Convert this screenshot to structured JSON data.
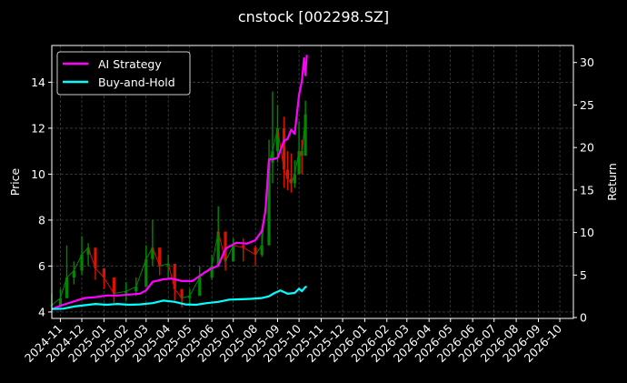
{
  "chart_data": {
    "type": "line",
    "title": "cnstock [002298.SZ]",
    "ylabel_left": "Price",
    "ylabel_right": "Return",
    "ylim_left": [
      3.72,
      15.6
    ],
    "ylim_right": [
      -0.1,
      32
    ],
    "yticks_left": [
      "4",
      "6",
      "8",
      "10",
      "12",
      "14"
    ],
    "yticks_right": [
      "0",
      "5",
      "10",
      "15",
      "20",
      "25",
      "30"
    ],
    "xticks": [
      "2024-11",
      "2024-12",
      "2025-01",
      "2025-02",
      "2025-03",
      "2025-04",
      "2025-05",
      "2025-06",
      "2025-07",
      "2025-08",
      "2025-09",
      "2025-10",
      "2025-11",
      "2025-12",
      "2026-01",
      "2026-02",
      "2026-03",
      "2026-04",
      "2026-05",
      "2026-06",
      "2026-07",
      "2026-08",
      "2026-09",
      "2026-10"
    ],
    "xlim": [
      "2024-10-20",
      "2026-10-20"
    ],
    "grid": true,
    "legend_position": "top-left",
    "series": [
      {
        "name": "AI Strategy",
        "axis": "right",
        "color": "#ff00ff",
        "x": [
          "2024-10-20",
          "2024-11-05",
          "2024-11-20",
          "2024-12-05",
          "2024-12-20",
          "2025-01-05",
          "2025-01-20",
          "2025-02-05",
          "2025-02-20",
          "2025-03-01",
          "2025-03-10",
          "2025-03-25",
          "2025-04-05",
          "2025-04-20",
          "2025-05-05",
          "2025-05-20",
          "2025-06-01",
          "2025-06-10",
          "2025-06-20",
          "2025-07-05",
          "2025-07-20",
          "2025-08-01",
          "2025-08-10",
          "2025-08-15",
          "2025-08-20",
          "2025-08-25",
          "2025-09-01",
          "2025-09-10",
          "2025-09-15",
          "2025-09-20",
          "2025-09-25",
          "2025-10-01",
          "2025-10-05",
          "2025-10-08",
          "2025-10-10",
          "2025-10-12"
        ],
        "y": [
          1.0,
          1.5,
          1.9,
          2.3,
          2.4,
          2.6,
          2.6,
          2.7,
          2.8,
          3.2,
          4.2,
          4.5,
          4.6,
          4.3,
          4.3,
          5.2,
          5.8,
          6.1,
          8.1,
          8.8,
          8.7,
          9.1,
          10.2,
          12.5,
          18.6,
          18.6,
          18.8,
          20.8,
          21.0,
          22.1,
          21.6,
          26.2,
          27.8,
          30.5,
          28.5,
          30.9
        ]
      },
      {
        "name": "Buy-and-Hold",
        "axis": "right",
        "color": "#00ffff",
        "x": [
          "2024-10-20",
          "2024-11-05",
          "2024-11-20",
          "2024-12-05",
          "2024-12-20",
          "2025-01-05",
          "2025-01-20",
          "2025-02-05",
          "2025-02-20",
          "2025-03-10",
          "2025-03-25",
          "2025-04-10",
          "2025-04-25",
          "2025-05-10",
          "2025-05-25",
          "2025-06-10",
          "2025-06-25",
          "2025-07-10",
          "2025-07-25",
          "2025-08-10",
          "2025-08-20",
          "2025-08-28",
          "2025-09-05",
          "2025-09-15",
          "2025-09-25",
          "2025-10-01",
          "2025-10-05",
          "2025-10-10",
          "2025-10-12"
        ],
        "y": [
          1.0,
          1.05,
          1.3,
          1.45,
          1.6,
          1.5,
          1.6,
          1.5,
          1.55,
          1.7,
          2.0,
          1.85,
          1.55,
          1.5,
          1.7,
          1.85,
          2.1,
          2.15,
          2.2,
          2.3,
          2.5,
          2.9,
          3.2,
          2.8,
          2.9,
          3.4,
          3.1,
          3.6,
          3.6
        ]
      },
      {
        "name": "",
        "axis": "left",
        "kind": "candles",
        "up_color": "#008800",
        "down_color": "#dd1100",
        "x": [
          "2024-10-20",
          "2024-11-01",
          "2024-11-10",
          "2024-11-20",
          "2024-12-01",
          "2024-12-10",
          "2024-12-20",
          "2025-01-01",
          "2025-01-15",
          "2025-02-01",
          "2025-02-15",
          "2025-03-01",
          "2025-03-10",
          "2025-03-20",
          "2025-04-01",
          "2025-04-10",
          "2025-04-20",
          "2025-05-01",
          "2025-05-15",
          "2025-06-01",
          "2025-06-10",
          "2025-06-20",
          "2025-07-01",
          "2025-07-15",
          "2025-08-01",
          "2025-08-10",
          "2025-08-20",
          "2025-08-25",
          "2025-09-01",
          "2025-09-10",
          "2025-09-15",
          "2025-09-20",
          "2025-09-25",
          "2025-10-01",
          "2025-10-05",
          "2025-10-10"
        ],
        "close": [
          4.3,
          4.6,
          5.5,
          5.8,
          6.5,
          6.8,
          5.9,
          5.5,
          4.8,
          4.9,
          5.1,
          6.3,
          6.8,
          6.0,
          6.1,
          5.0,
          4.6,
          4.7,
          5.5,
          6.0,
          7.5,
          6.2,
          6.9,
          6.8,
          6.5,
          6.9,
          10.5,
          11.0,
          12.0,
          10.2,
          9.8,
          9.6,
          10.0,
          11.0,
          10.8,
          12.6
        ],
        "high": [
          4.8,
          5.0,
          6.9,
          6.2,
          7.3,
          7.0,
          6.2,
          5.7,
          5.0,
          5.3,
          5.5,
          6.9,
          8.0,
          6.8,
          6.5,
          5.4,
          5.0,
          5.0,
          6.0,
          6.5,
          8.6,
          6.8,
          7.2,
          7.2,
          6.9,
          7.5,
          11.5,
          13.6,
          13.0,
          12.5,
          11.0,
          10.9,
          10.6,
          12.3,
          11.5,
          13.2
        ],
        "low": [
          4.0,
          4.3,
          4.8,
          5.2,
          5.6,
          6.0,
          5.4,
          5.0,
          4.4,
          4.5,
          4.7,
          5.5,
          6.0,
          5.6,
          5.4,
          4.5,
          4.2,
          4.3,
          5.0,
          5.4,
          6.5,
          5.8,
          6.3,
          6.2,
          6.0,
          6.4,
          8.0,
          9.6,
          10.5,
          9.4,
          9.3,
          9.2,
          9.4,
          10.2,
          10.0,
          11.6
        ]
      }
    ]
  }
}
